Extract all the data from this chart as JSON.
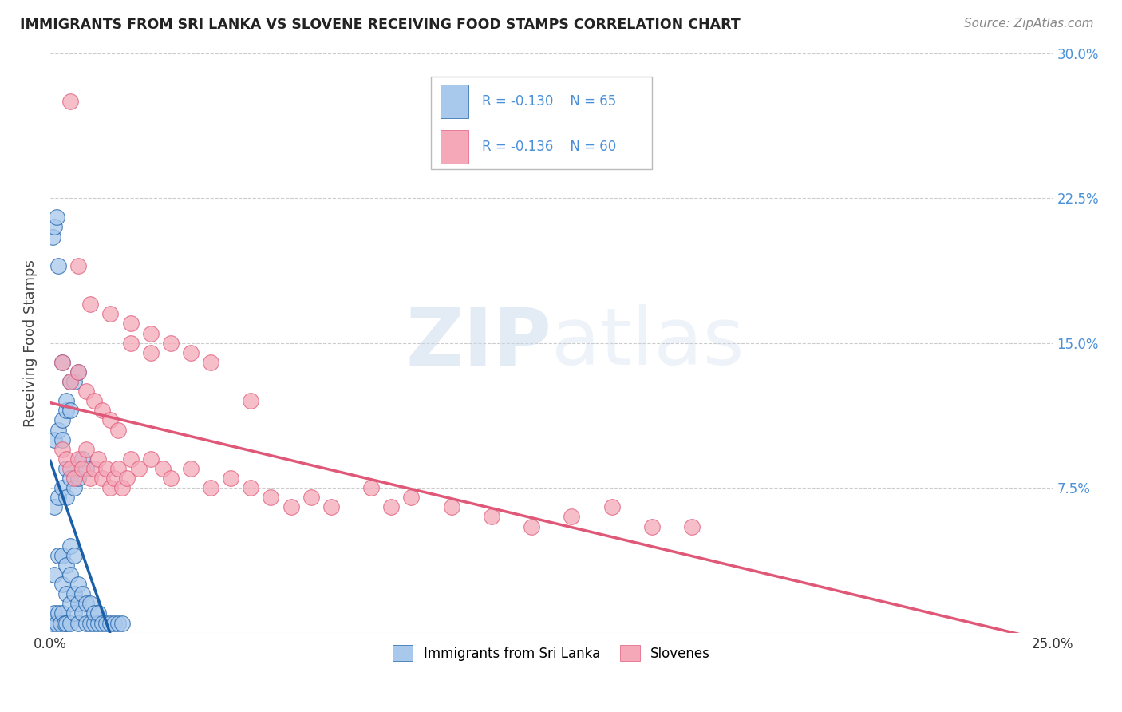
{
  "title": "IMMIGRANTS FROM SRI LANKA VS SLOVENE RECEIVING FOOD STAMPS CORRELATION CHART",
  "source": "Source: ZipAtlas.com",
  "ylabel": "Receiving Food Stamps",
  "xlim": [
    0.0,
    0.25
  ],
  "ylim": [
    0.0,
    0.3
  ],
  "xtick_pos": [
    0.0,
    0.05,
    0.1,
    0.15,
    0.2,
    0.25
  ],
  "ytick_pos": [
    0.0,
    0.075,
    0.15,
    0.225,
    0.3
  ],
  "xtick_labels": [
    "0.0%",
    "",
    "",
    "",
    "",
    "25.0%"
  ],
  "ytick_labels_right": [
    "",
    "7.5%",
    "15.0%",
    "22.5%",
    "30.0%"
  ],
  "legend_r1": "R = -0.130",
  "legend_n1": "N = 65",
  "legend_r2": "R = -0.136",
  "legend_n2": "N = 60",
  "blue_color": "#A8C8EC",
  "pink_color": "#F4A8B8",
  "blue_line_color": "#1A5FA8",
  "pink_line_color": "#E05878",
  "tick_label_color": "#4A90D9",
  "watermark_color": "#C8D8EC",
  "grid_color": "#CCCCCC",
  "sri_lanka_x": [
    0.0005,
    0.001,
    0.001,
    0.0015,
    0.002,
    0.002,
    0.0025,
    0.003,
    0.003,
    0.003,
    0.0035,
    0.004,
    0.004,
    0.004,
    0.005,
    0.005,
    0.005,
    0.005,
    0.006,
    0.006,
    0.006,
    0.007,
    0.007,
    0.007,
    0.008,
    0.008,
    0.009,
    0.009,
    0.01,
    0.01,
    0.011,
    0.011,
    0.012,
    0.012,
    0.013,
    0.014,
    0.015,
    0.016,
    0.017,
    0.018,
    0.001,
    0.002,
    0.003,
    0.004,
    0.004,
    0.005,
    0.006,
    0.007,
    0.008,
    0.009,
    0.001,
    0.002,
    0.003,
    0.003,
    0.004,
    0.004,
    0.005,
    0.005,
    0.006,
    0.007,
    0.0005,
    0.001,
    0.0015,
    0.002,
    0.003
  ],
  "sri_lanka_y": [
    0.005,
    0.01,
    0.03,
    0.005,
    0.01,
    0.04,
    0.005,
    0.01,
    0.025,
    0.04,
    0.005,
    0.005,
    0.02,
    0.035,
    0.005,
    0.015,
    0.03,
    0.045,
    0.01,
    0.02,
    0.04,
    0.005,
    0.015,
    0.025,
    0.01,
    0.02,
    0.005,
    0.015,
    0.005,
    0.015,
    0.005,
    0.01,
    0.005,
    0.01,
    0.005,
    0.005,
    0.005,
    0.005,
    0.005,
    0.005,
    0.065,
    0.07,
    0.075,
    0.07,
    0.085,
    0.08,
    0.075,
    0.08,
    0.09,
    0.085,
    0.1,
    0.105,
    0.1,
    0.11,
    0.115,
    0.12,
    0.115,
    0.13,
    0.13,
    0.135,
    0.205,
    0.21,
    0.215,
    0.19,
    0.14
  ],
  "slovene_x": [
    0.003,
    0.004,
    0.005,
    0.006,
    0.007,
    0.008,
    0.009,
    0.01,
    0.011,
    0.012,
    0.013,
    0.014,
    0.015,
    0.016,
    0.017,
    0.018,
    0.019,
    0.02,
    0.022,
    0.025,
    0.028,
    0.03,
    0.035,
    0.04,
    0.045,
    0.05,
    0.055,
    0.06,
    0.065,
    0.07,
    0.08,
    0.085,
    0.09,
    0.1,
    0.11,
    0.12,
    0.13,
    0.14,
    0.15,
    0.16,
    0.003,
    0.005,
    0.007,
    0.009,
    0.011,
    0.013,
    0.015,
    0.017,
    0.02,
    0.025,
    0.005,
    0.007,
    0.01,
    0.015,
    0.02,
    0.025,
    0.03,
    0.035,
    0.04,
    0.05
  ],
  "slovene_y": [
    0.095,
    0.09,
    0.085,
    0.08,
    0.09,
    0.085,
    0.095,
    0.08,
    0.085,
    0.09,
    0.08,
    0.085,
    0.075,
    0.08,
    0.085,
    0.075,
    0.08,
    0.09,
    0.085,
    0.09,
    0.085,
    0.08,
    0.085,
    0.075,
    0.08,
    0.075,
    0.07,
    0.065,
    0.07,
    0.065,
    0.075,
    0.065,
    0.07,
    0.065,
    0.06,
    0.055,
    0.06,
    0.065,
    0.055,
    0.055,
    0.14,
    0.13,
    0.135,
    0.125,
    0.12,
    0.115,
    0.11,
    0.105,
    0.15,
    0.145,
    0.275,
    0.19,
    0.17,
    0.165,
    0.16,
    0.155,
    0.15,
    0.145,
    0.14,
    0.12
  ]
}
